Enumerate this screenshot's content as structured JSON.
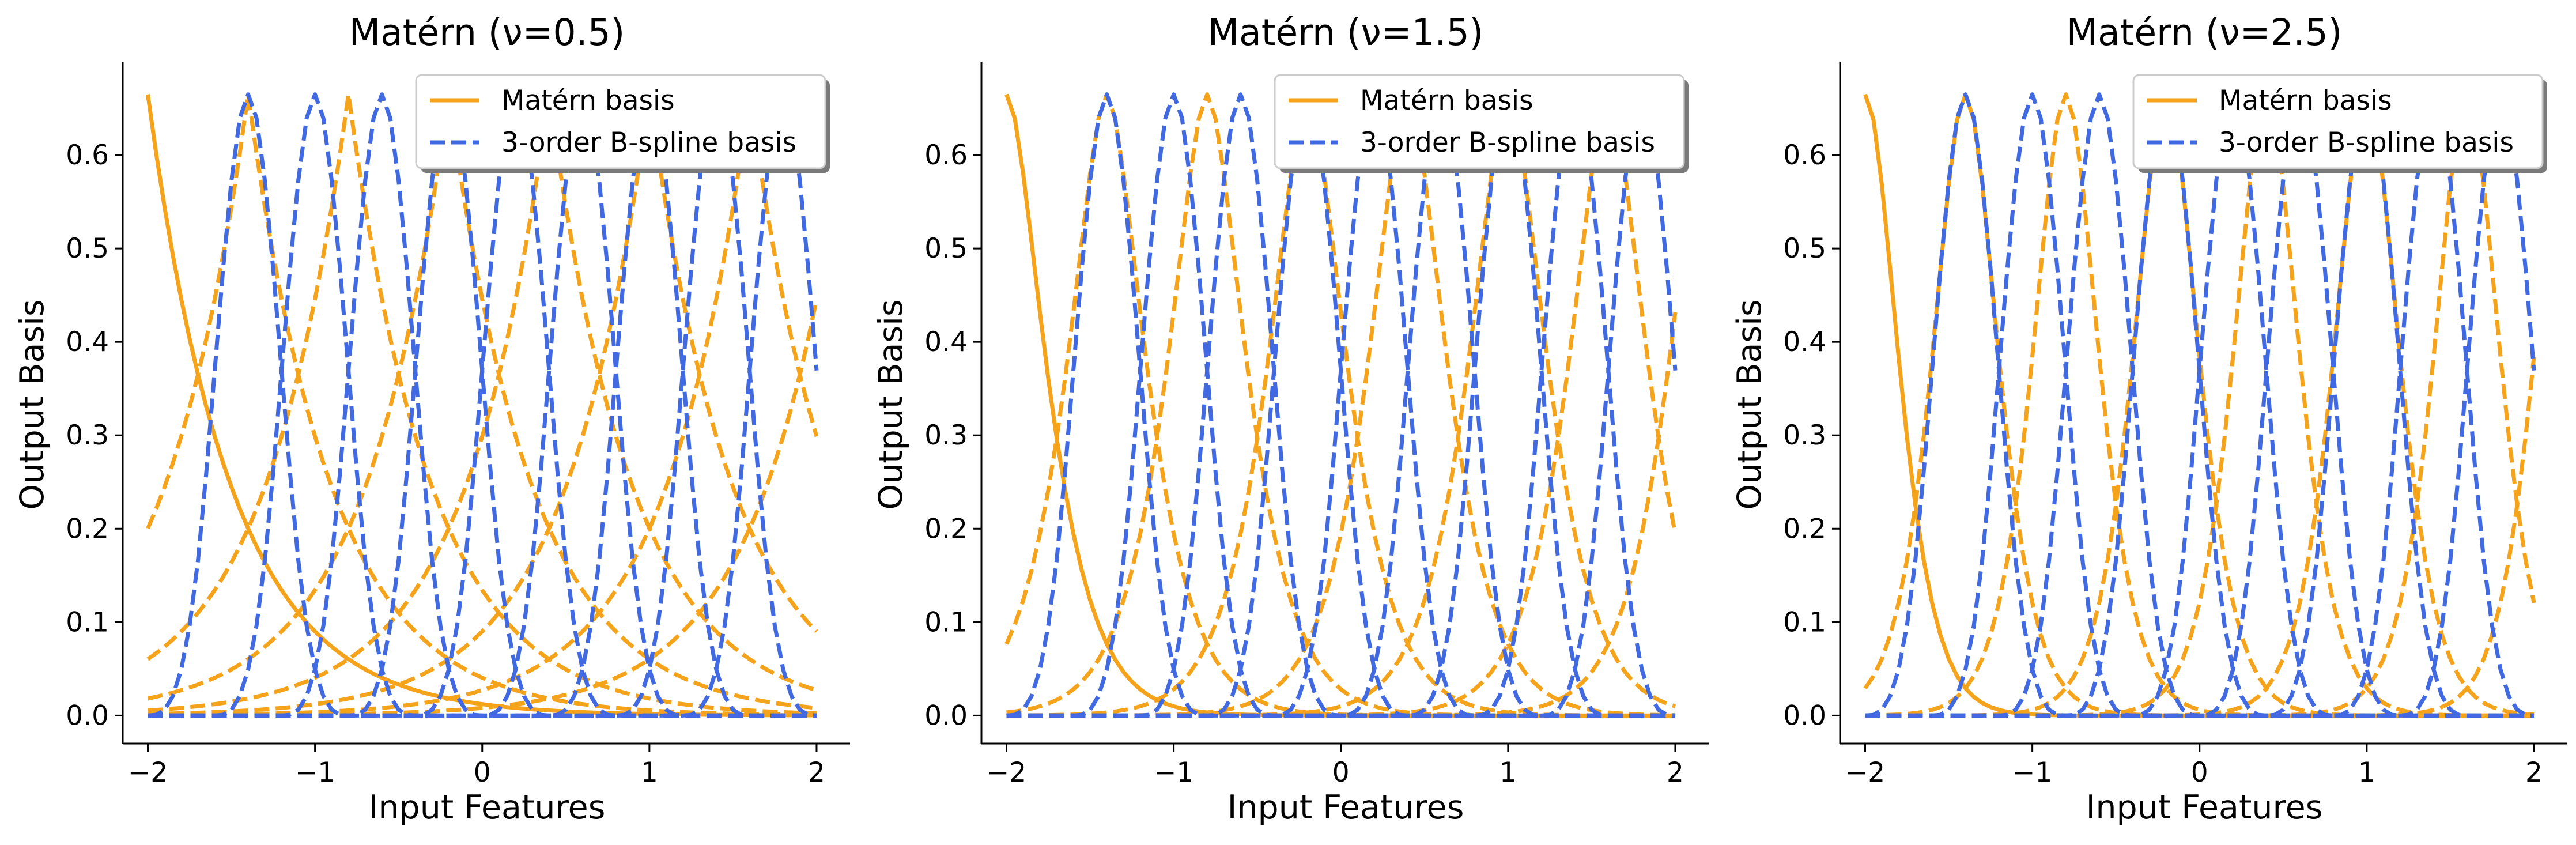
{
  "colors": {
    "matern": "#F5A31A",
    "bspline": "#4169E1"
  },
  "chart_data": [
    {
      "type": "line",
      "title": "Matérn (ν=0.5)",
      "xlabel": "Input Features",
      "ylabel": "Output Basis",
      "xlim": [
        -2.15,
        2.2
      ],
      "ylim": [
        -0.03,
        0.7
      ],
      "xticks": [
        -2,
        -1,
        0,
        1,
        2
      ],
      "xtick_labels": [
        "−2",
        "−1",
        "0",
        "1",
        "2"
      ],
      "yticks": [
        0.0,
        0.1,
        0.2,
        0.3,
        0.4,
        0.5,
        0.6
      ],
      "ytick_labels": [
        "0.0",
        "0.1",
        "0.2",
        "0.3",
        "0.4",
        "0.5",
        "0.6"
      ],
      "legend": {
        "position": "top-right",
        "entries": [
          "Matérn basis",
          "3-order B-spline basis"
        ]
      },
      "grid": false,
      "nu": 0.5,
      "matern_centers": [
        -2.0,
        -1.4,
        -0.8,
        -0.2,
        0.4,
        1.0,
        1.6,
        2.2
      ],
      "matern_peak": 0.665,
      "bspline_centers": [
        -1.4,
        -1.0,
        -0.6,
        -0.2,
        0.2,
        0.6,
        1.0,
        1.4,
        1.8
      ],
      "bspline_peak": 0.665,
      "bspline_halfwidth": 0.6,
      "series": [
        {
          "name": "Matérn basis",
          "style": "solid",
          "color": "#F5A31A"
        },
        {
          "name": "3-order B-spline basis",
          "style": "dashed",
          "color": "#4169E1"
        }
      ]
    },
    {
      "type": "line",
      "title": "Matérn (ν=1.5)",
      "xlabel": "Input Features",
      "ylabel": "Output Basis",
      "xlim": [
        -2.15,
        2.2
      ],
      "ylim": [
        -0.03,
        0.7
      ],
      "xticks": [
        -2,
        -1,
        0,
        1,
        2
      ],
      "xtick_labels": [
        "−2",
        "−1",
        "0",
        "1",
        "2"
      ],
      "yticks": [
        0.0,
        0.1,
        0.2,
        0.3,
        0.4,
        0.5,
        0.6
      ],
      "ytick_labels": [
        "0.0",
        "0.1",
        "0.2",
        "0.3",
        "0.4",
        "0.5",
        "0.6"
      ],
      "legend": {
        "position": "top-right",
        "entries": [
          "Matérn basis",
          "3-order B-spline basis"
        ]
      },
      "grid": false,
      "nu": 1.5,
      "matern_centers": [
        -2.0,
        -1.4,
        -0.8,
        -0.2,
        0.4,
        1.0,
        1.6,
        2.2
      ],
      "matern_peak": 0.665,
      "bspline_centers": [
        -1.4,
        -1.0,
        -0.6,
        -0.2,
        0.2,
        0.6,
        1.0,
        1.4,
        1.8
      ],
      "bspline_peak": 0.665,
      "bspline_halfwidth": 0.6,
      "series": [
        {
          "name": "Matérn basis",
          "style": "solid",
          "color": "#F5A31A"
        },
        {
          "name": "3-order B-spline basis",
          "style": "dashed",
          "color": "#4169E1"
        }
      ]
    },
    {
      "type": "line",
      "title": "Matérn (ν=2.5)",
      "xlabel": "Input Features",
      "ylabel": "Output Basis",
      "xlim": [
        -2.15,
        2.2
      ],
      "ylim": [
        -0.03,
        0.7
      ],
      "xticks": [
        -2,
        -1,
        0,
        1,
        2
      ],
      "xtick_labels": [
        "−2",
        "−1",
        "0",
        "1",
        "2"
      ],
      "yticks": [
        0.0,
        0.1,
        0.2,
        0.3,
        0.4,
        0.5,
        0.6
      ],
      "ytick_labels": [
        "0.0",
        "0.1",
        "0.2",
        "0.3",
        "0.4",
        "0.5",
        "0.6"
      ],
      "legend": {
        "position": "top-right",
        "entries": [
          "Matérn basis",
          "3-order B-spline basis"
        ]
      },
      "grid": false,
      "nu": 2.5,
      "matern_centers": [
        -2.0,
        -1.4,
        -0.8,
        -0.2,
        0.4,
        1.0,
        1.6,
        2.2
      ],
      "matern_peak": 0.665,
      "bspline_centers": [
        -1.4,
        -1.0,
        -0.6,
        -0.2,
        0.2,
        0.6,
        1.0,
        1.4,
        1.8
      ],
      "bspline_peak": 0.665,
      "bspline_halfwidth": 0.6,
      "series": [
        {
          "name": "Matérn basis",
          "style": "solid",
          "color": "#F5A31A"
        },
        {
          "name": "3-order B-spline basis",
          "style": "dashed",
          "color": "#4169E1"
        }
      ]
    }
  ]
}
